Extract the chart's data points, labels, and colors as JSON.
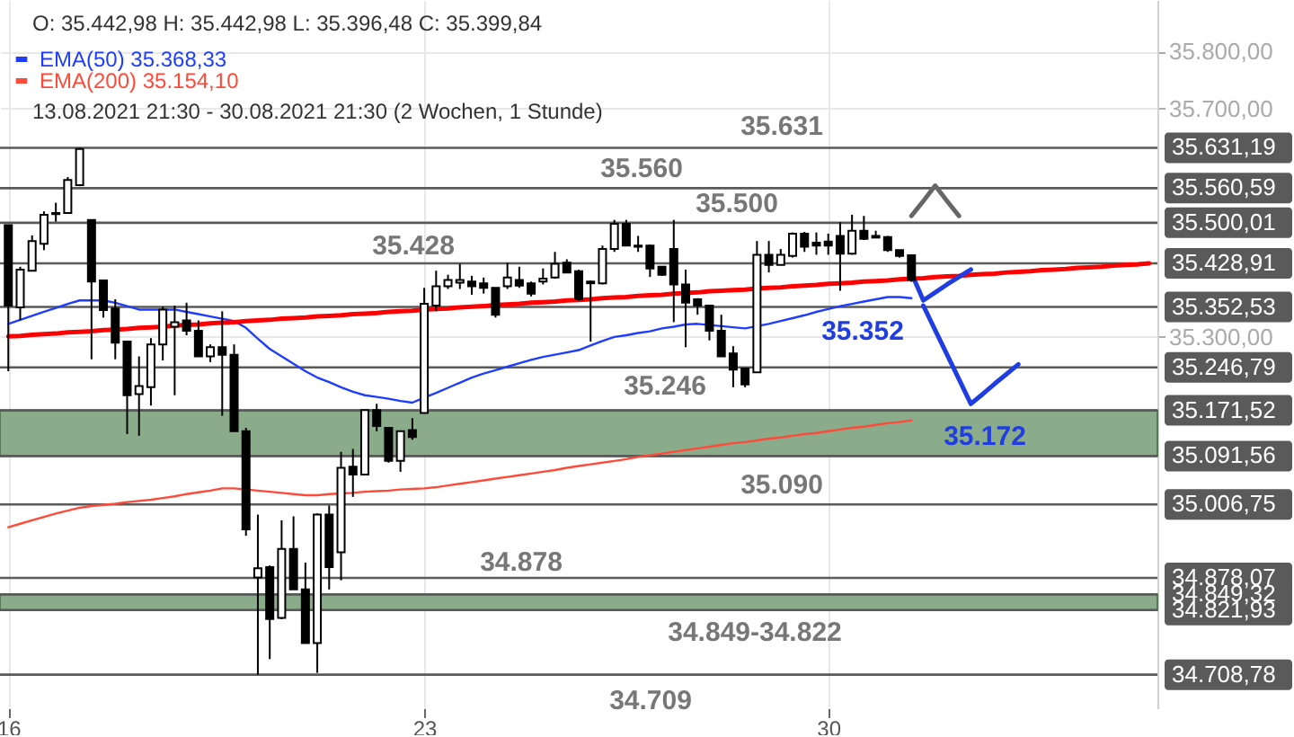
{
  "chart_data": {
    "type": "candlestick",
    "categories": [
      "16",
      null,
      null,
      null,
      null,
      null,
      null,
      null,
      null,
      null,
      null,
      null,
      null,
      null,
      null,
      null,
      null,
      null,
      null,
      null,
      null,
      null,
      null,
      null,
      null,
      null,
      null,
      null,
      null,
      null,
      null,
      null,
      null,
      null,
      null,
      "23",
      null,
      null,
      null,
      null,
      null,
      null,
      null,
      null,
      null,
      null,
      null,
      null,
      null,
      null,
      null,
      null,
      null,
      null,
      null,
      null,
      null,
      null,
      null,
      null,
      null,
      null,
      null,
      null,
      null,
      null,
      null,
      null,
      null,
      "30",
      null,
      null,
      null,
      null,
      null,
      null,
      null,
      null,
      null,
      null,
      null,
      null,
      null,
      null,
      null,
      null,
      null,
      null,
      null,
      null,
      null,
      null,
      null,
      null,
      null,
      null,
      null
    ],
    "ohlc": [
      [
        35496,
        35496,
        35240,
        35355
      ],
      [
        35352,
        35423,
        35329,
        35418
      ],
      [
        35416,
        35478,
        35416,
        35468
      ],
      [
        35463,
        35520,
        35452,
        35514
      ],
      [
        35515,
        35535,
        35502,
        35517
      ],
      [
        35517,
        35580,
        35517,
        35575
      ],
      [
        35566,
        35631.19,
        35564,
        35629
      ],
      [
        35505,
        35505,
        35261,
        35397
      ],
      [
        35399,
        35399,
        35334,
        35347
      ],
      [
        35350,
        35366,
        35261,
        35290
      ],
      [
        35292,
        35292,
        35130,
        35198
      ],
      [
        35200,
        35266,
        35127,
        35214
      ],
      [
        35212,
        35298,
        35180,
        35287
      ],
      [
        35287,
        35353,
        35259,
        35348
      ],
      [
        35318,
        35355,
        35198,
        35326
      ],
      [
        35329,
        35360,
        35303,
        35311
      ],
      [
        35311,
        35329,
        35266,
        35266
      ],
      [
        35266,
        35287,
        35256,
        35282
      ],
      [
        35282,
        35345,
        35162,
        35269
      ],
      [
        35269,
        35287,
        35135,
        35135
      ],
      [
        35135,
        35141,
        34952,
        34963
      ],
      [
        34879,
        34989,
        34708.78,
        34895
      ],
      [
        34897,
        34900,
        34736,
        34806
      ],
      [
        34808,
        34979,
        34806,
        34929
      ],
      [
        34929,
        34986,
        34858,
        34858
      ],
      [
        34858,
        34905,
        34764,
        34764
      ],
      [
        34764,
        34991,
        34712,
        34989
      ],
      [
        34989,
        35005,
        34858,
        34897
      ],
      [
        34923,
        35099,
        34874,
        35071
      ],
      [
        35073,
        35104,
        35020,
        35059
      ],
      [
        35059,
        35172,
        35059,
        35172
      ],
      [
        35172,
        35183,
        35135,
        35144
      ],
      [
        35141,
        35141,
        35080,
        35083
      ],
      [
        35083,
        35135,
        35064,
        35135
      ],
      [
        35137,
        35158,
        35120,
        35125
      ],
      [
        35167,
        35386,
        35167,
        35358
      ],
      [
        35355,
        35416,
        35345,
        35389
      ],
      [
        35389,
        35409,
        35384,
        35400
      ],
      [
        35395,
        35428,
        35384,
        35400
      ],
      [
        35397,
        35407,
        35374,
        35389
      ],
      [
        35394,
        35404,
        35376,
        35386
      ],
      [
        35386,
        35386,
        35334,
        35339
      ],
      [
        35389,
        35430,
        35384,
        35404
      ],
      [
        35400,
        35423,
        35386,
        35390
      ],
      [
        35394,
        35397,
        35371,
        35376
      ],
      [
        35397,
        35420,
        35392,
        35402
      ],
      [
        35404,
        35449,
        35402,
        35428
      ],
      [
        35430,
        35436,
        35413,
        35413
      ],
      [
        35415,
        35418,
        35363,
        35366
      ],
      [
        35394,
        35399,
        35292,
        35397
      ],
      [
        35394,
        35460,
        35392,
        35454
      ],
      [
        35454,
        35505,
        35449,
        35498
      ],
      [
        35498,
        35505,
        35460,
        35460
      ],
      [
        35458,
        35477,
        35449,
        35460
      ],
      [
        35460,
        35462,
        35405,
        35420
      ],
      [
        35423,
        35423,
        35407,
        35409
      ],
      [
        35454,
        35505,
        35326,
        35392
      ],
      [
        35392,
        35418,
        35282,
        35360
      ],
      [
        35366,
        35368,
        35339,
        35355
      ],
      [
        35355,
        35355,
        35294,
        35311
      ],
      [
        35311,
        35339,
        35266,
        35266
      ],
      [
        35271,
        35284,
        35212,
        35243
      ],
      [
        35245,
        35245,
        35212,
        35217
      ],
      [
        35238,
        35468,
        35238,
        35444
      ],
      [
        35444,
        35468,
        35413,
        35426
      ],
      [
        35426,
        35454,
        35426,
        35444
      ],
      [
        35442,
        35483,
        35439,
        35481
      ],
      [
        35481,
        35484,
        35449,
        35458
      ],
      [
        35465,
        35483,
        35444,
        35460
      ],
      [
        35467,
        35481,
        35444,
        35460
      ],
      [
        35477,
        35501,
        35381,
        35446
      ],
      [
        35446,
        35514,
        35444,
        35486
      ],
      [
        35486,
        35512,
        35470,
        35472
      ],
      [
        35477,
        35486,
        35474,
        35474
      ],
      [
        35475,
        35477,
        35449,
        35452
      ],
      [
        35452,
        35452,
        35439,
        35442
      ],
      [
        35442.98,
        35442.98,
        35396.48,
        35399.84
      ],
      null,
      null,
      null,
      null,
      null,
      null,
      null,
      null,
      null,
      null,
      null,
      null,
      null,
      null,
      null,
      null,
      null,
      null,
      null,
      null
    ],
    "series": [
      {
        "type": "line",
        "name": "EMA(50)  35.368,33",
        "color": "#1f3dff",
        "values": [
          35323,
          35330,
          35337,
          35344,
          35351,
          35358,
          35364,
          35364,
          35364,
          35360,
          35354,
          35348,
          35348,
          35348,
          35348,
          35344,
          35340,
          35336,
          35332,
          35328,
          35316,
          35297,
          35279,
          35266,
          35253,
          35240,
          35229,
          35221,
          35212,
          35204,
          35198,
          35195,
          35192,
          35188,
          35185,
          35194,
          35202,
          35211,
          35220,
          35229,
          35236,
          35242,
          35248,
          35254,
          35260,
          35265,
          35269,
          35273,
          35277,
          35285,
          35293,
          35300,
          35303,
          35307,
          35310,
          35315,
          35318,
          35322,
          35323,
          35321,
          35319,
          35317,
          35315,
          35319,
          35323,
          35328,
          35333,
          35338,
          35344,
          35349,
          35354,
          35358,
          35362,
          35366,
          35370,
          35370,
          35368,
          null,
          null,
          null,
          null,
          null,
          null,
          null,
          null,
          null,
          null,
          null,
          null,
          null,
          null,
          null,
          null,
          null,
          null,
          null,
          null
        ]
      },
      {
        "type": "line",
        "name": "EMA(200)  35.154,10",
        "color": "#ff4a3a",
        "values": [
          34967,
          34973,
          34979,
          34985,
          34991,
          34996,
          35001,
          35004,
          35006,
          35008,
          35011,
          35013,
          35015,
          35018,
          35021,
          35025,
          35028,
          35031,
          35035,
          35035,
          35033,
          35031,
          35029,
          35027,
          35025,
          35023,
          35023,
          35025,
          35026,
          35027,
          35029,
          35030,
          35031,
          35033,
          35034,
          35035,
          35037,
          35040,
          35043,
          35046,
          35049,
          35052,
          35055,
          35058,
          35061,
          35064,
          35067,
          35071,
          35074,
          35077,
          35080,
          35083,
          35086,
          35090,
          35093,
          35096,
          35099,
          35102,
          35105,
          35108,
          35111,
          35114,
          35116,
          35119,
          35122,
          35124,
          35127,
          35130,
          35132,
          35135,
          35138,
          35141,
          35143,
          35146,
          35149,
          35151,
          35154,
          null,
          null,
          null,
          null,
          null,
          null,
          null,
          null,
          null,
          null,
          null,
          null,
          null,
          null,
          null,
          null,
          null,
          null,
          null,
          null
        ]
      },
      {
        "type": "line",
        "color": "#ff0000",
        "values": [
          35301,
          35302,
          35304,
          35305,
          35306,
          35308,
          35309,
          35310,
          35312,
          35313,
          35314,
          35316,
          35317,
          35318,
          35320,
          35321,
          35322,
          35324,
          35325,
          35326,
          35328,
          35329,
          35330,
          35332,
          35333,
          35334,
          35336,
          35337,
          35338,
          35340,
          35341,
          35342,
          35344,
          35345,
          35346,
          35348,
          35349,
          35350,
          35352,
          35353,
          35354,
          35356,
          35357,
          35358,
          35360,
          35361,
          35362,
          35364,
          35365,
          35366,
          35368,
          35369,
          35370,
          35372,
          35373,
          35374,
          35376,
          35377,
          35378,
          35380,
          35381,
          35382,
          35383,
          35385,
          35386,
          35387,
          35389,
          35390,
          35391,
          35393,
          35394,
          35395,
          35397,
          35398,
          35399,
          35401,
          35402,
          35403,
          35405,
          35406,
          35407,
          35409,
          35410,
          35411,
          35413,
          35414,
          35415,
          35417,
          35418,
          35419,
          35421,
          35422,
          35423,
          35425,
          35426,
          35427,
          35429
        ]
      },
      {
        "type": "line",
        "color": "#1f3de0",
        "values": [
          null,
          null,
          null,
          null,
          null,
          null,
          null,
          null,
          null,
          null,
          null,
          null,
          null,
          null,
          null,
          null,
          null,
          null,
          null,
          null,
          null,
          null,
          null,
          null,
          null,
          null,
          null,
          null,
          null,
          null,
          null,
          null,
          null,
          null,
          null,
          null,
          null,
          null,
          null,
          null,
          null,
          null,
          null,
          null,
          null,
          null,
          null,
          null,
          null,
          null,
          null,
          null,
          null,
          null,
          null,
          null,
          null,
          null,
          null,
          null,
          null,
          null,
          null,
          null,
          null,
          null,
          null,
          null,
          null,
          null,
          null,
          null,
          null,
          null,
          null,
          null,
          35412,
          35364,
          35378,
          35392,
          35405,
          35418,
          null,
          null,
          null,
          null,
          null,
          null,
          null,
          null,
          null,
          null,
          null,
          null,
          null,
          null,
          null
        ]
      },
      {
        "type": "line",
        "color": "#1f3de0",
        "values": [
          null,
          null,
          null,
          null,
          null,
          null,
          null,
          null,
          null,
          null,
          null,
          null,
          null,
          null,
          null,
          null,
          null,
          null,
          null,
          null,
          null,
          null,
          null,
          null,
          null,
          null,
          null,
          null,
          null,
          null,
          null,
          null,
          null,
          null,
          null,
          null,
          null,
          null,
          null,
          null,
          null,
          null,
          null,
          null,
          null,
          null,
          null,
          null,
          null,
          null,
          null,
          null,
          null,
          null,
          null,
          null,
          null,
          null,
          null,
          null,
          null,
          null,
          null,
          null,
          null,
          null,
          null,
          null,
          null,
          null,
          null,
          null,
          null,
          null,
          null,
          null,
          null,
          35355,
          35312,
          35269,
          35226,
          35183,
          35200,
          35218,
          35235,
          35252,
          null,
          null,
          null,
          null,
          null,
          null,
          null,
          null,
          null,
          null,
          null
        ]
      },
      {
        "type": "line",
        "color": "#666666",
        "values": [
          null,
          null,
          null,
          null,
          null,
          null,
          null,
          null,
          null,
          null,
          null,
          null,
          null,
          null,
          null,
          null,
          null,
          null,
          null,
          null,
          null,
          null,
          null,
          null,
          null,
          null,
          null,
          null,
          null,
          null,
          null,
          null,
          null,
          null,
          null,
          null,
          null,
          null,
          null,
          null,
          null,
          null,
          null,
          null,
          null,
          null,
          null,
          null,
          null,
          null,
          null,
          null,
          null,
          null,
          null,
          null,
          null,
          null,
          null,
          null,
          null,
          null,
          null,
          null,
          null,
          null,
          null,
          null,
          null,
          null,
          null,
          null,
          null,
          null,
          null,
          null,
          35512,
          35538,
          35565,
          35538,
          35512,
          null,
          null,
          null,
          null,
          null,
          null,
          null,
          null,
          null,
          null,
          null,
          null,
          null,
          null,
          null,
          null
        ]
      }
    ],
    "ylim": [
      34650,
      35890
    ],
    "yticks": [
      {
        "value": 35300,
        "label": "35.300,00"
      },
      {
        "value": 35700,
        "label": "35.700,00"
      },
      {
        "value": 35800,
        "label": "35.800,00"
      }
    ],
    "grid": true,
    "legend": "top left",
    "bands": [
      {
        "axis": "y",
        "from": 35091.56,
        "to": 35171.52,
        "color": "#8aac8a"
      },
      {
        "axis": "y",
        "from": 34821.93,
        "to": 34849.32,
        "color": "#8aac8a"
      }
    ],
    "ref_lines": [
      {
        "axis": "y",
        "value": 35631.19,
        "label": "35.631,19",
        "color": "#5a5a5a"
      },
      {
        "axis": "y",
        "value": 35560.59,
        "label": "35.560,59",
        "color": "#5a5a5a"
      },
      {
        "axis": "y",
        "value": 35500.01,
        "label": "35.500,01",
        "color": "#5a5a5a"
      },
      {
        "axis": "y",
        "value": 35428.91,
        "label": "35.428,91",
        "color": "#5a5a5a"
      },
      {
        "axis": "y",
        "value": 35352.53,
        "label": "35.352,53",
        "color": "#5a5a5a"
      },
      {
        "axis": "y",
        "value": 35246.79,
        "label": "35.246,79",
        "color": "#5a5a5a"
      },
      {
        "axis": "y",
        "value": 35171.52,
        "label": "35.171,52",
        "color": "#5a5a5a"
      },
      {
        "axis": "y",
        "value": 35091.56,
        "label": "35.091,56",
        "color": "#5a5a5a"
      },
      {
        "axis": "y",
        "value": 35006.75,
        "label": "35.006,75",
        "color": "#5a5a5a"
      },
      {
        "axis": "y",
        "value": 34878.07,
        "label": "34.878,07",
        "color": "#5a5a5a"
      },
      {
        "axis": "y",
        "value": 34849.32,
        "label": "34.849,32",
        "color": "#5a5a5a"
      },
      {
        "axis": "y",
        "value": 34821.93,
        "label": "34.821,93",
        "color": "#5a5a5a"
      },
      {
        "axis": "y",
        "value": 34708.78,
        "label": "34.708,78",
        "color": "#5a5a5a"
      }
    ],
    "annotations": [
      "O: 35.442,98  H: 35.442,98  L: 35.396,48  C: 35.399,84",
      "13.08.2021 21:30 - 30.08.2021 21:30   (2 Wochen, 1 Stunde)",
      {
        "text": "35.631",
        "y": 35631.19
      },
      {
        "text": "35.560",
        "y": 35560.59
      },
      {
        "text": "35.500",
        "y": 35500.01
      },
      {
        "text": "35.428",
        "y": 35428.91
      },
      {
        "text": "35.352",
        "y": 35352.53
      },
      {
        "text": "35.246",
        "y": 35246.79
      },
      {
        "text": "35.172",
        "y": 35171.52
      },
      {
        "text": "35.090",
        "y": 35091.56
      },
      {
        "text": "34.878",
        "y": 34878.07
      },
      {
        "text": "34.849-34.822",
        "y": 34821.93
      },
      {
        "text": "34.709",
        "y": 34708.78
      }
    ]
  }
}
